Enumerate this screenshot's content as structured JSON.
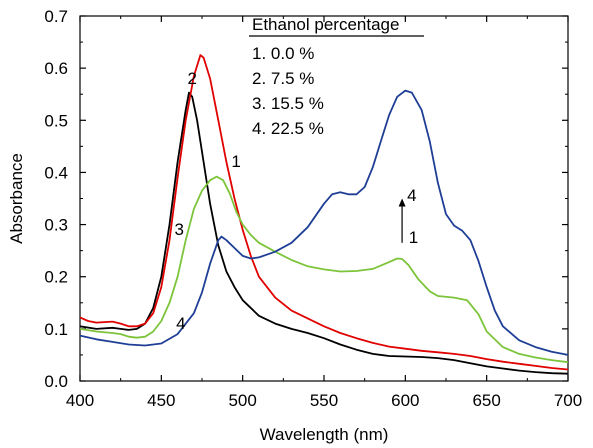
{
  "chart_data": {
    "type": "line",
    "title": "",
    "xlabel": "Wavelength (nm)",
    "ylabel": "Absorbance",
    "xlim": [
      400,
      700
    ],
    "ylim": [
      0.0,
      0.7
    ],
    "xticks": [
      400,
      450,
      500,
      550,
      600,
      650,
      700
    ],
    "yticks": [
      0.0,
      0.1,
      0.2,
      0.3,
      0.4,
      0.5,
      0.6,
      0.7
    ],
    "xtick_labels": [
      "400",
      "450",
      "500",
      "550",
      "600",
      "650",
      "700"
    ],
    "ytick_labels": [
      "0.0",
      "0.1",
      "0.2",
      "0.3",
      "0.4",
      "0.5",
      "0.6",
      "0.7"
    ],
    "grid": false,
    "legend": {
      "title": "Ethanol percentage",
      "placement": "top-right",
      "entries": [
        "1. 0.0  %",
        "2. 7.5  %",
        "3. 15.5 %",
        "4. 22.5 %"
      ]
    },
    "series": [
      {
        "label": "1",
        "color": "#000000",
        "points": [
          [
            400,
            0.105
          ],
          [
            410,
            0.1
          ],
          [
            420,
            0.102
          ],
          [
            425,
            0.1
          ],
          [
            430,
            0.098
          ],
          [
            435,
            0.1
          ],
          [
            440,
            0.11
          ],
          [
            445,
            0.14
          ],
          [
            450,
            0.2
          ],
          [
            455,
            0.3
          ],
          [
            460,
            0.42
          ],
          [
            465,
            0.52
          ],
          [
            467,
            0.553
          ],
          [
            469,
            0.545
          ],
          [
            472,
            0.5
          ],
          [
            476,
            0.42
          ],
          [
            480,
            0.34
          ],
          [
            485,
            0.26
          ],
          [
            490,
            0.21
          ],
          [
            495,
            0.18
          ],
          [
            500,
            0.155
          ],
          [
            510,
            0.125
          ],
          [
            520,
            0.11
          ],
          [
            530,
            0.1
          ],
          [
            540,
            0.092
          ],
          [
            550,
            0.082
          ],
          [
            560,
            0.07
          ],
          [
            570,
            0.06
          ],
          [
            580,
            0.052
          ],
          [
            590,
            0.048
          ],
          [
            600,
            0.047
          ],
          [
            610,
            0.046
          ],
          [
            620,
            0.044
          ],
          [
            630,
            0.04
          ],
          [
            640,
            0.034
          ],
          [
            650,
            0.028
          ],
          [
            660,
            0.024
          ],
          [
            670,
            0.02
          ],
          [
            680,
            0.017
          ],
          [
            690,
            0.015
          ],
          [
            700,
            0.014
          ]
        ]
      },
      {
        "label": "2",
        "color": "#e00000",
        "points": [
          [
            400,
            0.122
          ],
          [
            405,
            0.115
          ],
          [
            410,
            0.112
          ],
          [
            420,
            0.114
          ],
          [
            425,
            0.11
          ],
          [
            430,
            0.105
          ],
          [
            435,
            0.105
          ],
          [
            440,
            0.11
          ],
          [
            445,
            0.13
          ],
          [
            450,
            0.18
          ],
          [
            455,
            0.27
          ],
          [
            460,
            0.39
          ],
          [
            465,
            0.5
          ],
          [
            470,
            0.585
          ],
          [
            474,
            0.625
          ],
          [
            476,
            0.62
          ],
          [
            480,
            0.58
          ],
          [
            485,
            0.5
          ],
          [
            490,
            0.42
          ],
          [
            495,
            0.35
          ],
          [
            500,
            0.29
          ],
          [
            505,
            0.24
          ],
          [
            510,
            0.2
          ],
          [
            520,
            0.16
          ],
          [
            530,
            0.135
          ],
          [
            540,
            0.12
          ],
          [
            550,
            0.105
          ],
          [
            560,
            0.092
          ],
          [
            570,
            0.082
          ],
          [
            580,
            0.073
          ],
          [
            590,
            0.066
          ],
          [
            600,
            0.062
          ],
          [
            610,
            0.058
          ],
          [
            620,
            0.055
          ],
          [
            630,
            0.052
          ],
          [
            640,
            0.048
          ],
          [
            650,
            0.042
          ],
          [
            660,
            0.037
          ],
          [
            670,
            0.033
          ],
          [
            680,
            0.029
          ],
          [
            690,
            0.025
          ],
          [
            700,
            0.022
          ]
        ]
      },
      {
        "label": "3",
        "color": "#7cc43a",
        "points": [
          [
            400,
            0.1
          ],
          [
            410,
            0.095
          ],
          [
            420,
            0.092
          ],
          [
            425,
            0.09
          ],
          [
            430,
            0.085
          ],
          [
            435,
            0.083
          ],
          [
            440,
            0.085
          ],
          [
            445,
            0.095
          ],
          [
            450,
            0.115
          ],
          [
            455,
            0.15
          ],
          [
            460,
            0.2
          ],
          [
            465,
            0.27
          ],
          [
            470,
            0.33
          ],
          [
            475,
            0.365
          ],
          [
            480,
            0.385
          ],
          [
            484,
            0.392
          ],
          [
            488,
            0.385
          ],
          [
            492,
            0.36
          ],
          [
            496,
            0.325
          ],
          [
            500,
            0.3
          ],
          [
            505,
            0.28
          ],
          [
            510,
            0.265
          ],
          [
            520,
            0.248
          ],
          [
            530,
            0.232
          ],
          [
            540,
            0.22
          ],
          [
            550,
            0.214
          ],
          [
            560,
            0.21
          ],
          [
            570,
            0.211
          ],
          [
            580,
            0.215
          ],
          [
            590,
            0.228
          ],
          [
            595,
            0.235
          ],
          [
            598,
            0.234
          ],
          [
            602,
            0.222
          ],
          [
            608,
            0.195
          ],
          [
            615,
            0.172
          ],
          [
            620,
            0.163
          ],
          [
            630,
            0.16
          ],
          [
            638,
            0.155
          ],
          [
            645,
            0.128
          ],
          [
            650,
            0.095
          ],
          [
            660,
            0.065
          ],
          [
            670,
            0.052
          ],
          [
            680,
            0.045
          ],
          [
            690,
            0.04
          ],
          [
            700,
            0.036
          ]
        ]
      },
      {
        "label": "4",
        "color": "#1f3f96",
        "points": [
          [
            400,
            0.087
          ],
          [
            410,
            0.08
          ],
          [
            420,
            0.075
          ],
          [
            430,
            0.07
          ],
          [
            440,
            0.068
          ],
          [
            450,
            0.072
          ],
          [
            460,
            0.09
          ],
          [
            470,
            0.13
          ],
          [
            475,
            0.17
          ],
          [
            480,
            0.225
          ],
          [
            485,
            0.27
          ],
          [
            487,
            0.277
          ],
          [
            490,
            0.27
          ],
          [
            495,
            0.255
          ],
          [
            500,
            0.24
          ],
          [
            505,
            0.235
          ],
          [
            510,
            0.237
          ],
          [
            520,
            0.248
          ],
          [
            530,
            0.265
          ],
          [
            540,
            0.295
          ],
          [
            550,
            0.34
          ],
          [
            555,
            0.358
          ],
          [
            560,
            0.362
          ],
          [
            565,
            0.358
          ],
          [
            570,
            0.358
          ],
          [
            575,
            0.372
          ],
          [
            580,
            0.41
          ],
          [
            585,
            0.46
          ],
          [
            590,
            0.51
          ],
          [
            595,
            0.545
          ],
          [
            600,
            0.557
          ],
          [
            604,
            0.553
          ],
          [
            610,
            0.52
          ],
          [
            615,
            0.46
          ],
          [
            620,
            0.38
          ],
          [
            625,
            0.32
          ],
          [
            630,
            0.298
          ],
          [
            635,
            0.288
          ],
          [
            640,
            0.27
          ],
          [
            645,
            0.23
          ],
          [
            650,
            0.18
          ],
          [
            655,
            0.135
          ],
          [
            660,
            0.105
          ],
          [
            670,
            0.078
          ],
          [
            680,
            0.065
          ],
          [
            690,
            0.056
          ],
          [
            700,
            0.05
          ]
        ]
      }
    ],
    "annotations": {
      "curve_labels": [
        {
          "text": "1",
          "x": 496,
          "y": 0.41
        },
        {
          "text": "2",
          "x": 469,
          "y": 0.57
        },
        {
          "text": "3",
          "x": 461,
          "y": 0.28
        },
        {
          "text": "4",
          "x": 462,
          "y": 0.1
        },
        {
          "text": "4",
          "x": 604,
          "y": 0.345
        },
        {
          "text": "1",
          "x": 605,
          "y": 0.265
        }
      ],
      "arrow": {
        "x": 598,
        "y_from": 0.265,
        "y_to": 0.35
      }
    }
  }
}
